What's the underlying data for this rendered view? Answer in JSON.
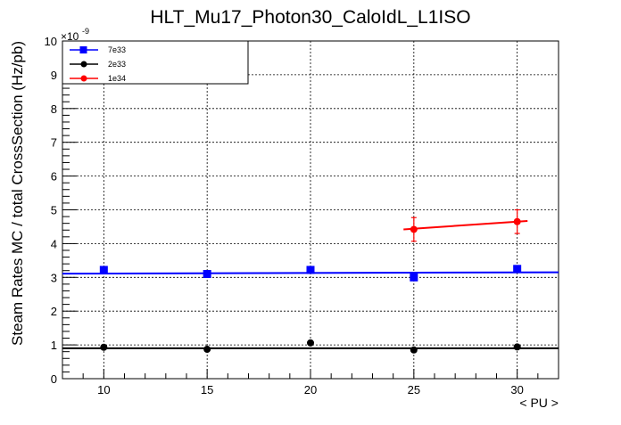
{
  "chart_data": {
    "type": "scatter",
    "title": "HLT_Mu17_Photon30_CaloIdL_L1ISO",
    "xlabel": "< PU >",
    "ylabel": "Steam Rates MC / total CrossSection (Hz/pb)",
    "y_exponent_label": "×10",
    "y_exponent_value": "-9",
    "xlim": [
      8,
      32
    ],
    "ylim": [
      0,
      10
    ],
    "x_ticks": [
      10,
      15,
      20,
      25,
      30
    ],
    "y_ticks": [
      0,
      1,
      2,
      3,
      4,
      5,
      6,
      7,
      8,
      9,
      10
    ],
    "grid": true,
    "legend_position": "top-left",
    "series": [
      {
        "name": "7e33",
        "color": "#0000ff",
        "marker": "square",
        "x": [
          10,
          15,
          20,
          25,
          30
        ],
        "y": [
          3.22,
          3.1,
          3.22,
          3.0,
          3.25
        ],
        "err": [
          0,
          0,
          0,
          0,
          0
        ],
        "fit": {
          "x": [
            8,
            32
          ],
          "y": [
            3.11,
            3.15
          ]
        }
      },
      {
        "name": "2e33",
        "color": "#000000",
        "marker": "circle",
        "x": [
          10,
          15,
          20,
          25,
          30
        ],
        "y": [
          0.93,
          0.87,
          1.06,
          0.85,
          0.94
        ],
        "err": [
          0,
          0,
          0,
          0,
          0
        ],
        "fit": {
          "x": [
            8,
            32
          ],
          "y": [
            0.9,
            0.9
          ]
        }
      },
      {
        "name": "1e34",
        "color": "#ff0000",
        "marker": "circle",
        "x": [
          25,
          30
        ],
        "y": [
          4.42,
          4.65
        ],
        "err": [
          0.35,
          0.35
        ],
        "fit": {
          "x": [
            24.5,
            30.5
          ],
          "y": [
            4.42,
            4.67
          ]
        }
      }
    ]
  }
}
